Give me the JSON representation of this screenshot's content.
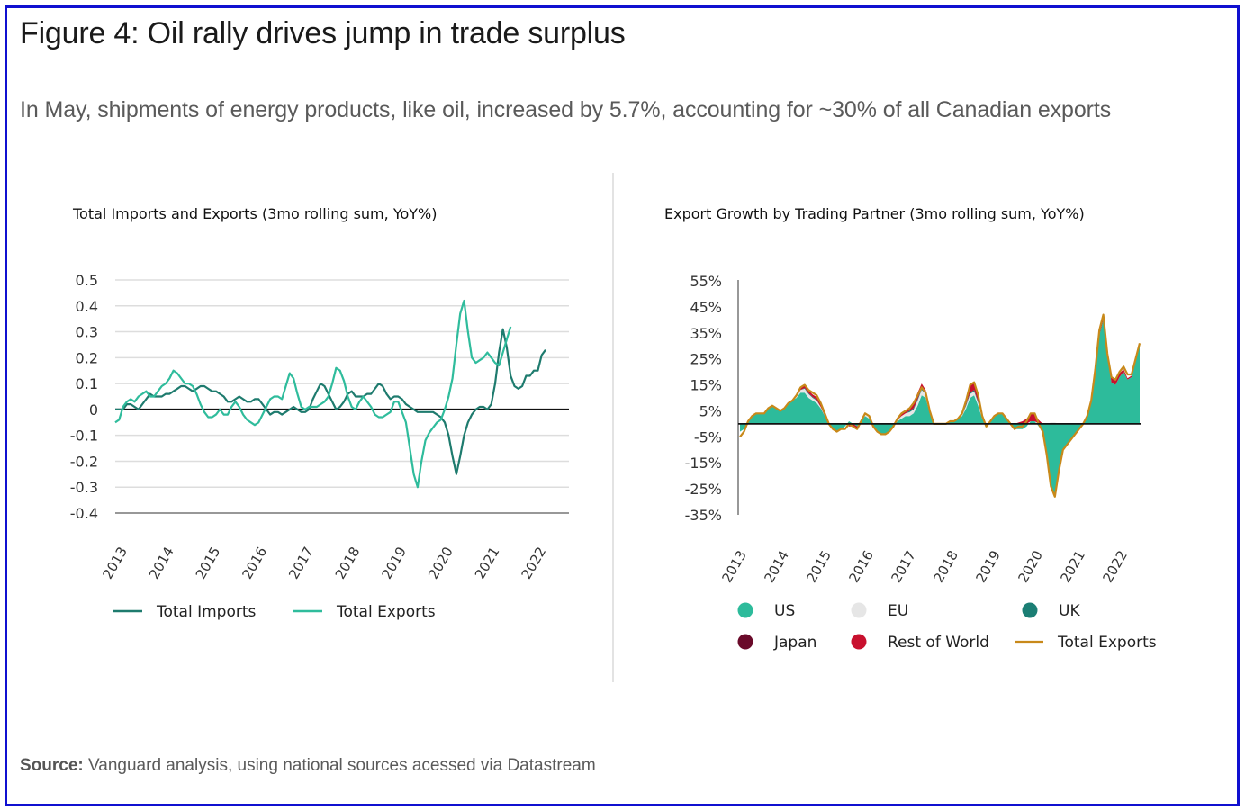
{
  "figure": {
    "title": "Figure 4: Oil rally drives jump in trade surplus",
    "subtitle": "In May, shipments of energy products, like oil, increased by 5.7%, accounting for ~30% of all Canadian exports",
    "source_label": "Source:",
    "source_text": " Vanguard analysis, using national sources acessed via Datastream"
  },
  "colors": {
    "frame_border": "#1010d0",
    "imports": "#1e7b6e",
    "exports": "#2fbc9c",
    "us": "#2dbb9b",
    "eu": "#e6e6e6",
    "uk": "#1b7e74",
    "japan": "#6a0a2a",
    "rest_of_world": "#c8102e",
    "total_exports_line": "#c8891a",
    "gridline": "#dddddd",
    "zero_line": "#111111"
  },
  "chart_data": [
    {
      "type": "line",
      "title": "Total Imports and Exports (3mo rolling sum, YoY%)",
      "xlabel": "",
      "ylabel": "",
      "ylim": [
        -0.4,
        0.5
      ],
      "yticks": [
        "0.5",
        "0.4",
        "0.3",
        "0.2",
        "0.1",
        "0",
        "-0.1",
        "-0.2",
        "-0.3",
        "-0.4"
      ],
      "ytick_values": [
        0.5,
        0.4,
        0.3,
        0.2,
        0.1,
        0,
        -0.1,
        -0.2,
        -0.3,
        -0.4
      ],
      "xticks": [
        "2013",
        "2014",
        "2015",
        "2016",
        "2017",
        "2018",
        "2019",
        "2020",
        "2021",
        "2022"
      ],
      "xlim": [
        2013.0,
        2022.75
      ],
      "grid": true,
      "legend": "bottom",
      "x_step_years": 0.0833,
      "x_start": 2013.0,
      "series": [
        {
          "name": "Total Imports",
          "color_key": "imports",
          "values": [
            0.0,
            0.0,
            0.0,
            0.02,
            0.02,
            0.01,
            0.0,
            0.02,
            0.04,
            0.06,
            0.05,
            0.05,
            0.05,
            0.06,
            0.06,
            0.07,
            0.08,
            0.09,
            0.09,
            0.08,
            0.07,
            0.08,
            0.09,
            0.09,
            0.08,
            0.07,
            0.07,
            0.06,
            0.05,
            0.03,
            0.03,
            0.04,
            0.05,
            0.04,
            0.03,
            0.03,
            0.04,
            0.04,
            0.02,
            0.0,
            -0.02,
            -0.01,
            -0.01,
            -0.02,
            -0.01,
            0.0,
            0.01,
            0.0,
            -0.01,
            -0.01,
            0.0,
            0.04,
            0.07,
            0.1,
            0.09,
            0.06,
            0.03,
            0.0,
            0.01,
            0.03,
            0.06,
            0.07,
            0.05,
            0.05,
            0.05,
            0.06,
            0.06,
            0.08,
            0.1,
            0.09,
            0.06,
            0.04,
            0.05,
            0.05,
            0.04,
            0.02,
            0.01,
            0.0,
            -0.01,
            -0.01,
            -0.01,
            -0.01,
            -0.01,
            -0.02,
            -0.03,
            -0.05,
            -0.1,
            -0.18,
            -0.25,
            -0.18,
            -0.1,
            -0.05,
            -0.02,
            0.0,
            0.01,
            0.01,
            0.0,
            0.02,
            0.1,
            0.22,
            0.31,
            0.24,
            0.13,
            0.09,
            0.08,
            0.09,
            0.13,
            0.13,
            0.15,
            0.15,
            0.21,
            0.23
          ]
        },
        {
          "name": "Total Exports",
          "color_key": "exports",
          "values": [
            -0.05,
            -0.04,
            0.01,
            0.03,
            0.04,
            0.03,
            0.05,
            0.06,
            0.07,
            0.05,
            0.05,
            0.07,
            0.09,
            0.1,
            0.12,
            0.15,
            0.14,
            0.12,
            0.1,
            0.1,
            0.09,
            0.06,
            0.02,
            -0.01,
            -0.03,
            -0.03,
            -0.02,
            0.0,
            -0.02,
            -0.02,
            0.01,
            0.03,
            0.01,
            -0.02,
            -0.04,
            -0.05,
            -0.06,
            -0.05,
            -0.02,
            0.01,
            0.04,
            0.05,
            0.05,
            0.04,
            0.09,
            0.14,
            0.12,
            0.06,
            0.01,
            0.0,
            0.01,
            0.01,
            0.01,
            0.02,
            0.03,
            0.05,
            0.1,
            0.16,
            0.15,
            0.11,
            0.05,
            0.01,
            0.0,
            0.03,
            0.05,
            0.03,
            0.01,
            -0.02,
            -0.03,
            -0.03,
            -0.02,
            -0.01,
            0.03,
            0.03,
            -0.01,
            -0.05,
            -0.15,
            -0.25,
            -0.3,
            -0.2,
            -0.12,
            -0.09,
            -0.07,
            -0.05,
            -0.04,
            0.0,
            0.05,
            0.12,
            0.25,
            0.37,
            0.42,
            0.3,
            0.2,
            0.18,
            0.19,
            0.2,
            0.22,
            0.2,
            0.18,
            0.17,
            0.22,
            0.27,
            0.32
          ]
        }
      ]
    },
    {
      "type": "area",
      "stacked": true,
      "title": "Export Growth by Trading Partner (3mo rolling sum, YoY%)",
      "xlabel": "",
      "ylabel": "",
      "ylim": [
        -35,
        55
      ],
      "yticks": [
        "55%",
        "45%",
        "35%",
        "25%",
        "15%",
        "5%",
        "-5%",
        "-15%",
        "-25%",
        "-35%"
      ],
      "ytick_values": [
        55,
        45,
        35,
        25,
        15,
        5,
        -5,
        -15,
        -25,
        -35
      ],
      "zero_line_value": 0,
      "xticks": [
        "2013",
        "2014",
        "2015",
        "2016",
        "2017",
        "2018",
        "2019",
        "2020",
        "2021",
        "2022"
      ],
      "xlim": [
        2013.0,
        2022.75
      ],
      "grid": false,
      "legend": "bottom",
      "x_step_years": 0.0833,
      "x_start": 2013.0,
      "series": [
        {
          "name": "US",
          "color_key": "us",
          "legend_marker": "dot",
          "values": [
            -3,
            -2,
            1,
            3,
            4,
            4,
            4,
            6,
            7,
            6,
            5,
            6,
            8,
            9,
            10,
            12,
            12,
            10,
            9,
            8,
            6,
            3,
            0,
            -2,
            -3,
            -2,
            -1,
            1,
            0,
            -1,
            1,
            3,
            2,
            -1,
            -3,
            -4,
            -4,
            -3,
            -1,
            1,
            2,
            3,
            3,
            4,
            7,
            11,
            10,
            4,
            0,
            0,
            0,
            0,
            1,
            1,
            2,
            3,
            6,
            10,
            11,
            7,
            2,
            -1,
            1,
            3,
            4,
            4,
            2,
            0,
            -2,
            -2,
            -2,
            -1,
            1,
            1,
            -1,
            -3,
            -12,
            -24,
            -28,
            -18,
            -10,
            -8,
            -6,
            -4,
            -2,
            0,
            3,
            8,
            20,
            34,
            40,
            26,
            16,
            15,
            18,
            20,
            17,
            18,
            24,
            30
          ]
        },
        {
          "name": "EU",
          "color_key": "eu",
          "legend_marker": "dot",
          "values": [
            0,
            0,
            0,
            0,
            0,
            0,
            0,
            0,
            0,
            0,
            0,
            0,
            0,
            0,
            0.5,
            1,
            1.5,
            1.5,
            1,
            1,
            0.5,
            0,
            0,
            0,
            0,
            0,
            0,
            0,
            0,
            0,
            0,
            0.5,
            0.5,
            0,
            0,
            0,
            0,
            0,
            0,
            0.5,
            1,
            1,
            1.5,
            1.5,
            2,
            2,
            1.5,
            0.5,
            0,
            0,
            0,
            0,
            0,
            0,
            0,
            0.5,
            1,
            1.5,
            1.5,
            1,
            0.5,
            0,
            0,
            0,
            0,
            0,
            0,
            0,
            0,
            0,
            0,
            0,
            0,
            0,
            0,
            0,
            0,
            0.5,
            0.5,
            0,
            0,
            0,
            0,
            0,
            0,
            0,
            0,
            0,
            0,
            0,
            0,
            0,
            0,
            0,
            0,
            0,
            0,
            0,
            0,
            0
          ]
        },
        {
          "name": "UK",
          "color_key": "uk",
          "legend_marker": "dot",
          "values": [
            0,
            0,
            0,
            0,
            0,
            0,
            0,
            0,
            0,
            0,
            0,
            0,
            0,
            0,
            0,
            0,
            0.3,
            0.3,
            0.3,
            0.3,
            0,
            0,
            0,
            0,
            0,
            0,
            0,
            0,
            0,
            0,
            0,
            0,
            0,
            0,
            0,
            0,
            0,
            0,
            0,
            0,
            0,
            0,
            0.5,
            0.5,
            0.5,
            0.5,
            0.5,
            0,
            0,
            0,
            0,
            0,
            0,
            0,
            0,
            0,
            0.5,
            0.5,
            0.5,
            0.5,
            0,
            0,
            0,
            0,
            0,
            0,
            0,
            0,
            0,
            0,
            0,
            0,
            0,
            0,
            0,
            0,
            0,
            0,
            0,
            0,
            0,
            0,
            0,
            0,
            0,
            0,
            0,
            0,
            0,
            0,
            0,
            0,
            0,
            0,
            0,
            0,
            0,
            0,
            0,
            0,
            0,
            0
          ]
        },
        {
          "name": "Japan",
          "color_key": "japan",
          "legend_marker": "dot",
          "values": [
            0,
            0,
            0,
            0,
            0,
            0,
            0,
            0,
            0,
            0,
            0,
            0,
            0,
            0,
            0,
            0,
            0,
            0,
            0,
            0,
            0,
            0,
            0,
            0,
            0,
            0,
            0,
            0,
            0,
            0,
            0,
            0,
            0,
            0,
            0,
            0,
            0,
            0,
            0,
            0,
            0,
            0,
            0,
            0,
            0,
            0,
            0,
            0,
            0,
            0,
            0,
            0,
            0,
            0,
            0,
            0,
            0,
            0,
            0,
            0,
            0,
            0,
            0,
            0,
            0,
            0,
            0,
            0,
            0,
            0,
            0,
            0,
            0,
            0,
            0,
            0,
            0,
            0,
            0,
            0,
            0,
            0,
            0,
            0,
            0,
            0,
            0,
            0,
            0,
            0,
            0,
            0,
            0,
            0,
            0,
            0,
            0,
            0,
            0,
            0,
            0,
            0
          ]
        },
        {
          "name": "Rest of World",
          "color_key": "rest_of_world",
          "legend_marker": "dot",
          "values": [
            0,
            0,
            0,
            0,
            0,
            0,
            0,
            0,
            0,
            0,
            0,
            0,
            0,
            0,
            0.5,
            1,
            1,
            1,
            1,
            1,
            1,
            0.5,
            0,
            0,
            0,
            0,
            0,
            -1,
            -1,
            -1,
            0,
            0,
            0,
            0,
            0,
            0,
            0,
            0,
            0,
            0.5,
            1,
            1,
            1.5,
            2,
            2.5,
            2,
            1,
            0.5,
            0,
            0,
            0,
            0,
            0,
            0,
            0,
            1,
            2,
            3,
            3,
            2,
            0.5,
            0,
            0,
            0,
            0,
            0,
            0,
            0,
            0,
            0.5,
            1,
            2,
            3,
            3,
            1.5,
            0,
            0,
            0,
            0,
            0,
            0,
            0,
            0,
            0,
            0,
            0,
            0,
            0.5,
            1,
            1,
            1.5,
            1.5,
            2,
            2,
            1.5,
            1,
            0.5,
            0.5,
            0.5,
            0,
            0
          ]
        },
        {
          "name": "Total Exports",
          "color_key": "total_exports_line",
          "legend_marker": "line",
          "values": [
            -5,
            -3,
            1,
            3,
            4,
            4,
            4,
            6,
            7,
            6,
            5,
            6,
            8,
            9,
            11,
            14,
            15,
            13,
            12,
            11,
            8,
            4,
            0,
            -2,
            -3,
            -2,
            -2,
            0,
            -1,
            -2,
            1,
            4,
            3,
            -1,
            -3,
            -4,
            -4,
            -3,
            -1,
            2,
            4,
            5,
            6,
            8,
            11,
            14,
            12,
            5,
            0,
            0,
            0,
            0,
            1,
            1,
            2,
            4,
            9,
            15,
            16,
            11,
            3,
            -1,
            1,
            3,
            4,
            4,
            2,
            0,
            -2,
            -1,
            -1,
            1,
            4,
            4,
            0,
            -3,
            -12,
            -24,
            -28,
            -18,
            -10,
            -8,
            -6,
            -4,
            -2,
            0,
            3,
            9,
            21,
            36,
            42,
            27,
            18,
            17,
            20,
            22,
            19,
            19,
            25,
            31
          ]
        }
      ]
    }
  ]
}
